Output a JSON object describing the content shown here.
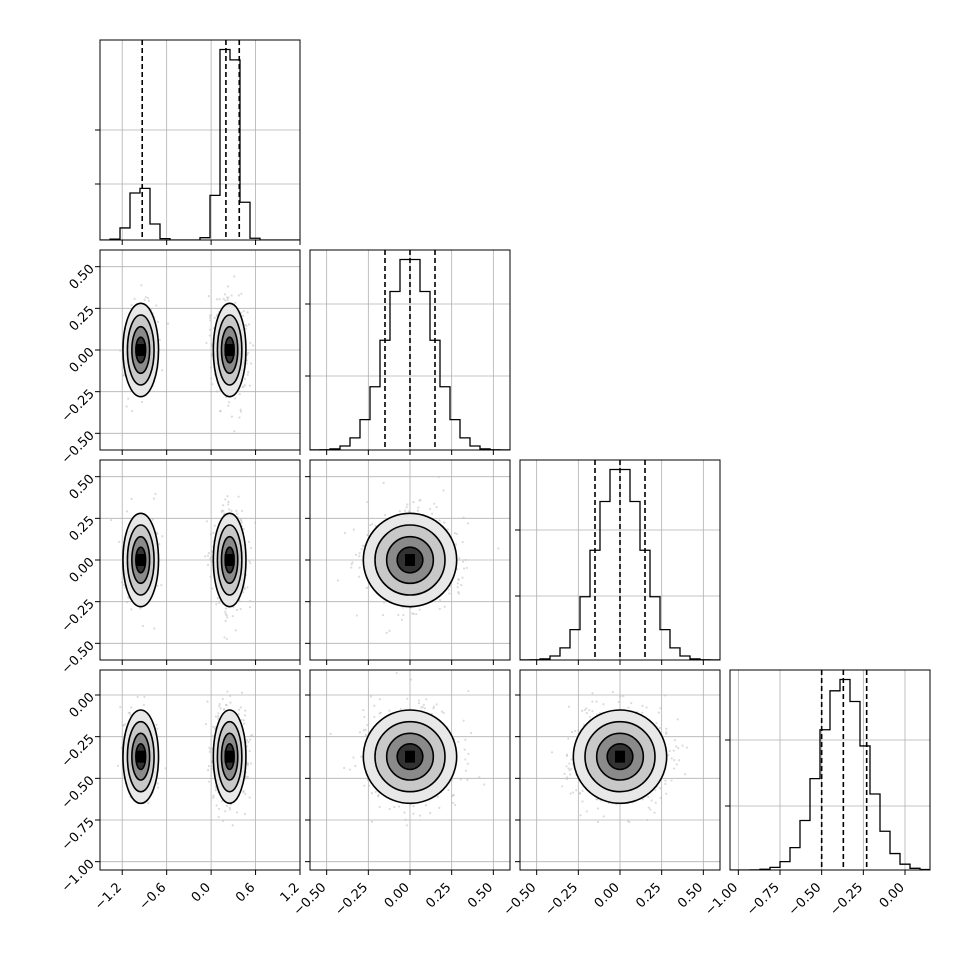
{
  "chart_data": {
    "type": "corner",
    "parameters": [
      {
        "id": "p1",
        "range": [
          -1.5,
          1.2
        ],
        "ticks": [
          -1.2,
          -0.6,
          0.0,
          0.6,
          1.2
        ],
        "tick_labels": [
          "−1.2",
          "−0.6",
          "0.0",
          "0.6",
          "1.2"
        ],
        "quantiles": [
          -0.93,
          0.2,
          0.38
        ],
        "components": [
          {
            "weight": 0.22,
            "mean": -0.95,
            "sd": 0.12
          },
          {
            "weight": 0.78,
            "mean": 0.25,
            "sd": 0.11
          }
        ],
        "hist_tick_values": [
          0.28,
          0.55
        ]
      },
      {
        "id": "p2",
        "range": [
          -0.6,
          0.6
        ],
        "ticks": [
          -0.5,
          -0.25,
          0.0,
          0.25,
          0.5
        ],
        "tick_labels": [
          "−0.50",
          "−0.25",
          "0.00",
          "0.25",
          "0.50"
        ],
        "quantiles": [
          -0.15,
          0.0,
          0.15
        ],
        "components": [
          {
            "weight": 1.0,
            "mean": 0.0,
            "sd": 0.14
          }
        ],
        "hist_tick_values": [
          0.37,
          0.73
        ]
      },
      {
        "id": "p3",
        "range": [
          -0.6,
          0.6
        ],
        "ticks": [
          -0.5,
          -0.25,
          0.0,
          0.25,
          0.5
        ],
        "tick_labels": [
          "−0.50",
          "−0.25",
          "0.00",
          "0.25",
          "0.50"
        ],
        "quantiles": [
          -0.15,
          0.0,
          0.15
        ],
        "components": [
          {
            "weight": 1.0,
            "mean": 0.0,
            "sd": 0.14
          }
        ],
        "hist_tick_values": [
          0.32,
          0.65
        ]
      },
      {
        "id": "p4",
        "range": [
          -1.05,
          0.15
        ],
        "ticks": [
          -1.0,
          -0.75,
          -0.5,
          -0.25,
          0.0
        ],
        "tick_labels": [
          "−1.00",
          "−0.75",
          "−0.50",
          "−0.25",
          "0.00"
        ],
        "quantiles": [
          -0.5,
          -0.37,
          -0.23
        ],
        "components": [
          {
            "weight": 1.0,
            "mean": -0.37,
            "sd": 0.14
          }
        ],
        "hist_tick_values": [
          0.32,
          0.65
        ]
      }
    ],
    "bins": 20,
    "hist_color": "#000000",
    "density_color": "#000000",
    "grid": true
  }
}
